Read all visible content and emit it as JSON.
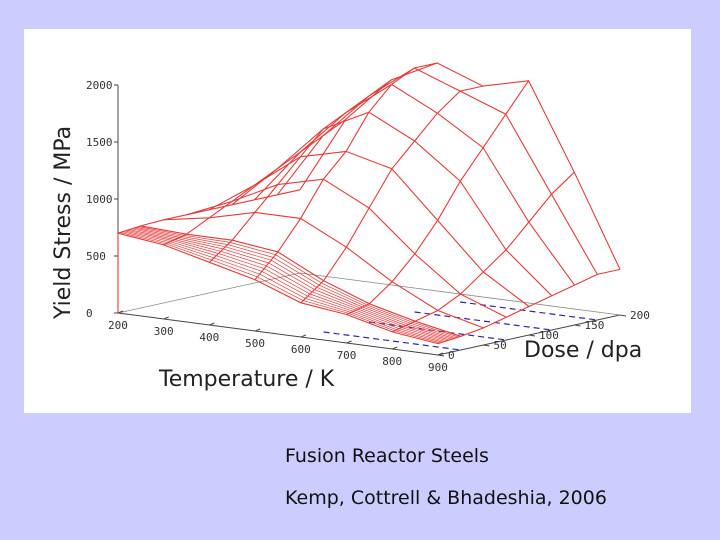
{
  "caption": {
    "title": "Fusion Reactor Steels",
    "credit": "Kemp, Cottrell & Bhadeshia, 2006"
  },
  "chart_data": {
    "type": "surface",
    "title": "",
    "xlabel": "Temperature / K",
    "ylabel": "Dose / dpa",
    "zlabel": "Yield Stress / MPa",
    "x_ticks": [
      "200",
      "300",
      "400",
      "500",
      "600",
      "700",
      "800",
      "900"
    ],
    "y_ticks": [
      "0",
      "50",
      "100",
      "150",
      "200"
    ],
    "z_ticks": [
      "0",
      "500",
      "1000",
      "1500",
      "2000"
    ],
    "xlim": [
      200,
      900
    ],
    "ylim": [
      0,
      200
    ],
    "zlim": [
      0,
      2000
    ],
    "temperatures": [
      200,
      300,
      400,
      500,
      600,
      700,
      800,
      900
    ],
    "doses": [
      0,
      25,
      50,
      75,
      100,
      125,
      150,
      175,
      200
    ],
    "yield_stress": [
      [
        700,
        720,
        730,
        730,
        730,
        730,
        730,
        730,
        730
      ],
      [
        650,
        700,
        800,
        900,
        1000,
        1100,
        1200,
        1300,
        1400
      ],
      [
        550,
        700,
        900,
        1100,
        1300,
        1500,
        1600,
        1700,
        1800
      ],
      [
        450,
        650,
        900,
        1200,
        1400,
        1700,
        1900,
        2000,
        2000
      ],
      [
        300,
        450,
        700,
        1000,
        1300,
        1500,
        1700,
        1850,
        1850
      ],
      [
        250,
        300,
        450,
        650,
        900,
        1200,
        1450,
        1700,
        1950
      ],
      [
        150,
        200,
        250,
        350,
        500,
        650,
        850,
        1050,
        1200
      ],
      [
        100,
        120,
        150,
        200,
        250,
        300,
        350,
        400,
        400
      ]
    ],
    "surface_color": "#e83a3a",
    "contour_color": "#2a2aa8",
    "background": "#ffffff",
    "page_background": "#ccccff"
  }
}
